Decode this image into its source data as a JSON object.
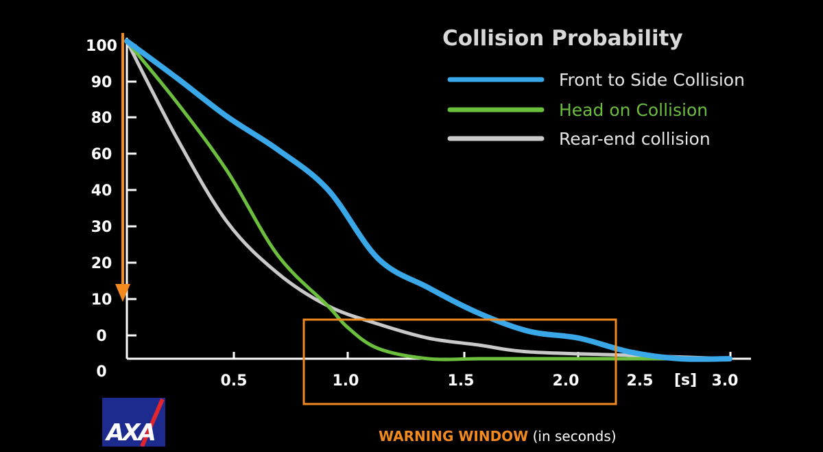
{
  "chart_data": {
    "type": "line",
    "title": "Collision Probability",
    "xlabel": "[s]",
    "ylabel": "",
    "xlim": [
      0,
      3.1
    ],
    "y_tick_labels": [
      "0",
      "0",
      "10",
      "20",
      "30",
      "40",
      "60",
      "80",
      "90",
      "100"
    ],
    "x_tick_labels": [
      "0.5",
      "1.0",
      "1.5",
      "2.0",
      "2.5",
      "3.0"
    ],
    "grid": false,
    "legend_position": "top-right",
    "series": [
      {
        "name": "Front to Side Collision",
        "color": "#3aa8e8",
        "x": [
          0,
          0.25,
          0.5,
          0.75,
          1.0,
          1.25,
          1.5,
          1.75,
          2.0,
          2.25,
          2.5,
          2.75,
          3.0
        ],
        "y": [
          100,
          90,
          78,
          60,
          39,
          20,
          12,
          5,
          0,
          -2,
          -6,
          -8,
          -8
        ]
      },
      {
        "name": "Head on Collision",
        "color": "#6cbf3d",
        "x": [
          0,
          0.25,
          0.5,
          0.75,
          1.0,
          1.1,
          1.25,
          1.5,
          1.75,
          2.0,
          2.5,
          2.8
        ],
        "y": [
          100,
          83,
          48,
          21,
          7,
          1,
          -5,
          -8,
          -8,
          -8,
          -8,
          -8
        ]
      },
      {
        "name": "Rear-end collision",
        "color": "#c9c9c9",
        "x": [
          0,
          0.25,
          0.5,
          0.75,
          1.0,
          1.25,
          1.5,
          1.75,
          2.0,
          2.5,
          3.0
        ],
        "y": [
          100,
          66,
          30,
          16,
          7,
          2,
          -2,
          -4,
          -6,
          -7,
          -8
        ]
      }
    ]
  },
  "annotations": {
    "warning_label": "WARNING WINDOW",
    "warning_suffix": " (in seconds)",
    "logo_text": "AXA"
  },
  "colors": {
    "accent": "#f28a1f",
    "background": "#000000",
    "text": "#ffffff"
  }
}
